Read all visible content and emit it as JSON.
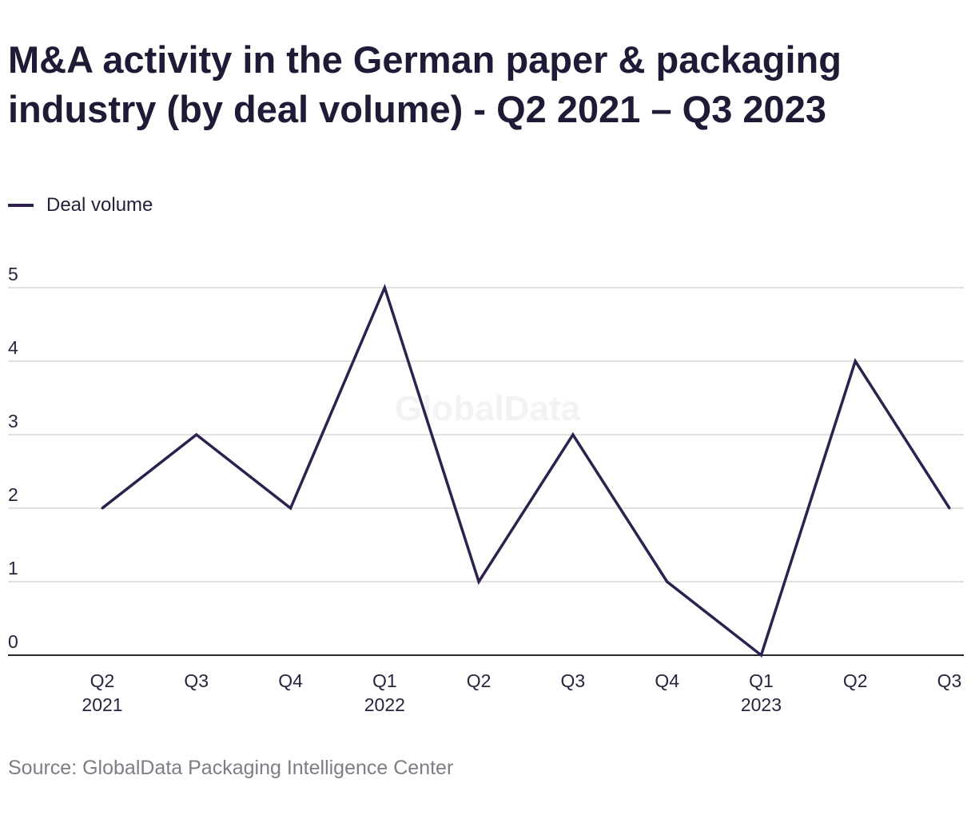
{
  "header": {
    "title": "M&A activity in the German paper & packaging industry (by deal volume) - Q2 2021 – Q3 2023"
  },
  "legend": {
    "label": "Deal volume"
  },
  "watermark": {
    "text": "GlobalData"
  },
  "footer": {
    "source": "Source: GlobalData Packaging Intelligence Center"
  },
  "colors": {
    "line": "#2e2150",
    "grid": "#d7d7d7",
    "axis": "#2a2a2a",
    "tick_text": "#27253d",
    "watermark": "#f3f3f5"
  },
  "chart_data": {
    "type": "line",
    "title": "M&A activity in the German paper & packaging industry (by deal volume) - Q2 2021 – Q3 2023",
    "categories": [
      [
        "Q2",
        "2021"
      ],
      [
        "Q3",
        ""
      ],
      [
        "Q4",
        ""
      ],
      [
        "Q1",
        "2022"
      ],
      [
        "Q2",
        ""
      ],
      [
        "Q3",
        ""
      ],
      [
        "Q4",
        ""
      ],
      [
        "Q1",
        "2023"
      ],
      [
        "Q2",
        ""
      ],
      [
        "Q3",
        ""
      ]
    ],
    "series": [
      {
        "name": "Deal volume",
        "values": [
          2,
          3,
          2,
          5,
          1,
          3,
          1,
          0,
          4,
          2
        ]
      }
    ],
    "y_ticks": [
      0,
      1,
      2,
      3,
      4,
      5
    ],
    "ylim": [
      0,
      5
    ],
    "grid": true,
    "legend_position": "top-left"
  }
}
